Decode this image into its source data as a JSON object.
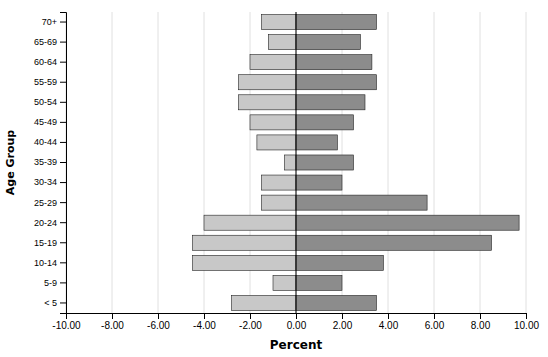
{
  "chart_data": {
    "type": "bar",
    "orientation": "horizontal",
    "categories": [
      "70+",
      "65-69",
      "60-64",
      "55-59",
      "50-54",
      "45-49",
      "40-44",
      "35-39",
      "30-34",
      "25-29",
      "20-24",
      "15-19",
      "10-14",
      "5-9",
      "< 5"
    ],
    "series": [
      {
        "color": "#c8c8c8",
        "values": [
          -1.5,
          -1.2,
          -2.0,
          -2.5,
          -2.5,
          -2.0,
          -1.7,
          -0.5,
          -1.5,
          -1.5,
          -4.0,
          -4.5,
          -4.5,
          -1.0,
          -2.8
        ]
      },
      {
        "color": "#8c8c8c",
        "values": [
          3.5,
          2.8,
          3.3,
          3.5,
          3.0,
          2.5,
          1.8,
          2.5,
          2.0,
          5.7,
          9.7,
          8.5,
          3.8,
          2.0,
          3.5
        ]
      }
    ],
    "xlabel": "Percent",
    "ylabel": "Age Group",
    "xlim": [
      -10,
      10
    ],
    "xticks": [
      {
        "value": -10,
        "label": "-10.00"
      },
      {
        "value": -8,
        "label": "-8.00"
      },
      {
        "value": -6,
        "label": "-6.00"
      },
      {
        "value": -4,
        "label": "-4.00"
      },
      {
        "value": -2,
        "label": "-2.00"
      },
      {
        "value": 0,
        "label": "0.00"
      },
      {
        "value": 2,
        "label": "2.00"
      },
      {
        "value": 4,
        "label": "4.00"
      },
      {
        "value": 6,
        "label": "6.00"
      },
      {
        "value": 8,
        "label": "8.00"
      },
      {
        "value": 10,
        "label": "10.00"
      }
    ],
    "grid": true
  }
}
